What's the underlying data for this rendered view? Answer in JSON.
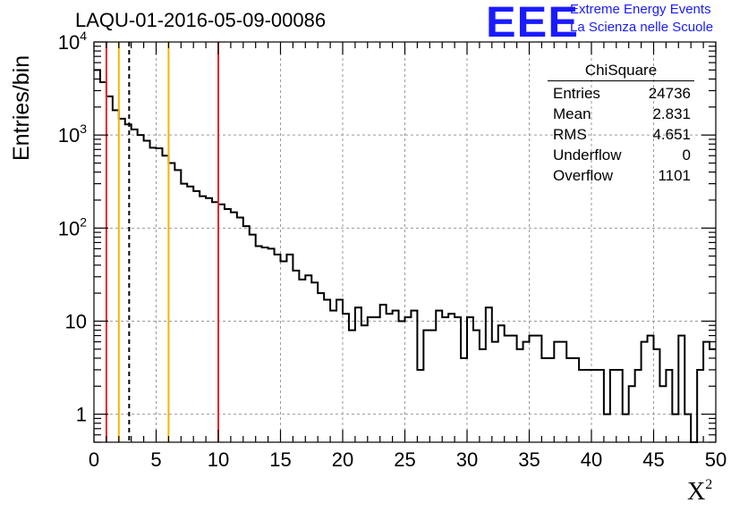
{
  "title": "LAQU-01-2016-05-09-00086",
  "logo": {
    "letters": "EEE",
    "line1": "Extreme Energy Events",
    "line2": "La Scienza nelle Scuole",
    "color": "#1a1aff"
  },
  "stats_box": {
    "title": "ChiSquare",
    "rows": [
      {
        "label": "Entries",
        "value": "24736"
      },
      {
        "label": "Mean",
        "value": "2.831"
      },
      {
        "label": "RMS",
        "value": "4.651"
      },
      {
        "label": "Underflow",
        "value": "0"
      },
      {
        "label": "Overflow",
        "value": "1101"
      }
    ]
  },
  "chart_data": {
    "type": "histogram",
    "title": "LAQU-01-2016-05-09-00086",
    "xlabel": "X",
    "xlabel_exponent": "2",
    "ylabel": "Entries/bin",
    "xlim": [
      0,
      50
    ],
    "ylim": [
      0.5,
      10000
    ],
    "yscale": "log",
    "grid": true,
    "x_ticks": [
      "0",
      "5",
      "10",
      "15",
      "20",
      "25",
      "30",
      "35",
      "40",
      "45",
      "50"
    ],
    "y_ticks": [
      {
        "value": 1,
        "base": "1",
        "exp": ""
      },
      {
        "value": 10,
        "base": "10",
        "exp": ""
      },
      {
        "value": 100,
        "base": "10",
        "exp": "2"
      },
      {
        "value": 1000,
        "base": "10",
        "exp": "3"
      },
      {
        "value": 10000,
        "base": "10",
        "exp": "4"
      }
    ],
    "bin_width": 0.5,
    "bin_start": 0,
    "values": [
      5000,
      3700,
      2600,
      1850,
      1500,
      1300,
      1150,
      1000,
      870,
      730,
      720,
      600,
      500,
      420,
      300,
      280,
      250,
      220,
      210,
      190,
      180,
      160,
      148,
      130,
      105,
      85,
      64,
      62,
      60,
      52,
      44,
      52,
      35,
      28,
      31,
      26,
      20,
      17,
      13,
      17,
      12,
      8,
      14,
      9,
      11,
      11,
      15,
      12,
      13,
      10,
      11,
      13,
      3,
      8,
      8,
      13,
      11,
      12,
      11,
      4,
      11,
      8,
      5,
      14,
      6,
      9,
      7,
      7,
      5,
      6,
      7,
      7,
      4,
      4,
      6,
      6,
      4,
      4,
      3,
      3,
      3,
      3,
      1,
      3,
      3,
      1,
      2,
      3,
      6,
      7,
      5,
      2,
      3,
      1,
      7,
      1,
      0,
      3,
      6,
      5
    ],
    "vertical_lines": [
      {
        "x": 1.0,
        "color": "#e8262a",
        "style": "solid"
      },
      {
        "x": 2.0,
        "color": "#f2b800",
        "style": "solid"
      },
      {
        "x": 2.831,
        "color": "#000000",
        "style": "dashed"
      },
      {
        "x": 6.0,
        "color": "#f2b800",
        "style": "solid"
      },
      {
        "x": 10.0,
        "color": "#e8262a",
        "style": "solid"
      }
    ]
  }
}
